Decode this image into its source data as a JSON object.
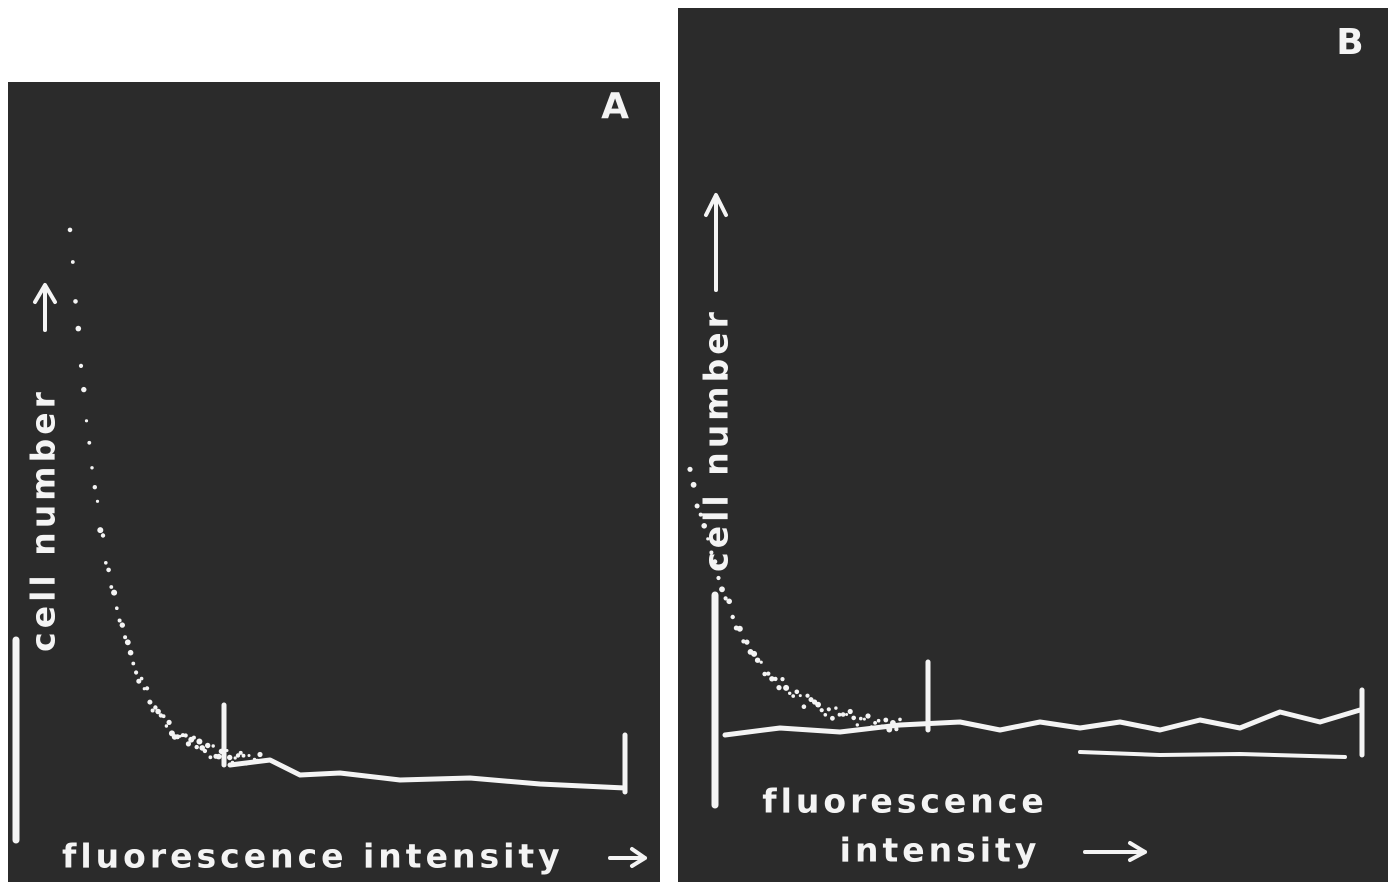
{
  "panels": [
    {
      "label": "A",
      "y_axis_label": "cell number",
      "x_axis_label": "fluorescence intensity"
    },
    {
      "label": "B",
      "y_axis_label": "cell number",
      "x_axis_label_lines": [
        "fluorescence",
        "intensity"
      ]
    }
  ]
}
